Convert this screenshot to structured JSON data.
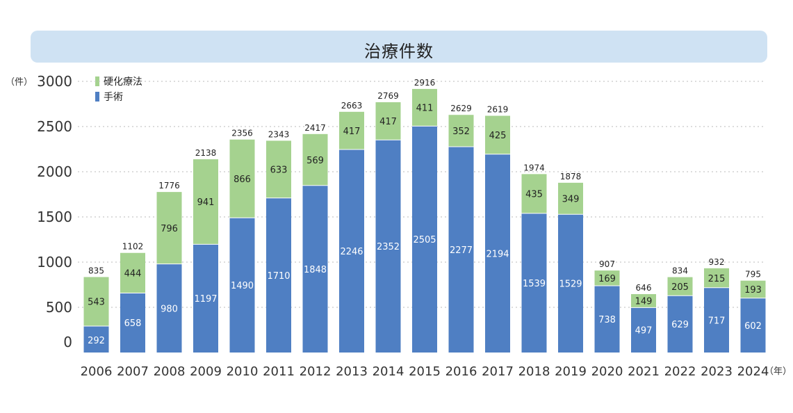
{
  "title": "治療件数",
  "y_unit": "（件）",
  "x_unit": "（年）",
  "colors": {
    "surgery": "#4f7fc3",
    "sclerotherapy": "#a5d28f",
    "banner": "#cfe2f3"
  },
  "chart_data": {
    "type": "bar",
    "stacked": true,
    "title": "治療件数",
    "categories": [
      "2006",
      "2007",
      "2008",
      "2009",
      "2010",
      "2011",
      "2012",
      "2013",
      "2014",
      "2015",
      "2016",
      "2017",
      "2018",
      "2019",
      "2020",
      "2021",
      "2022",
      "2023",
      "2024"
    ],
    "series": [
      {
        "name": "手術",
        "values": [
          292,
          658,
          980,
          1197,
          1490,
          1710,
          1848,
          2246,
          2352,
          2505,
          2277,
          2194,
          1539,
          1529,
          738,
          497,
          629,
          717,
          602
        ]
      },
      {
        "name": "硬化療法",
        "values": [
          543,
          444,
          796,
          941,
          866,
          633,
          569,
          417,
          417,
          411,
          352,
          425,
          435,
          349,
          169,
          149,
          205,
          215,
          193
        ]
      }
    ],
    "totals": [
      835,
      1102,
      1776,
      2138,
      2356,
      2343,
      2417,
      2663,
      2769,
      2916,
      2629,
      2619,
      1974,
      1878,
      907,
      646,
      834,
      932,
      795
    ],
    "ylim": [
      0,
      3000
    ],
    "yticks": [
      0,
      500,
      1000,
      1500,
      2000,
      2500,
      3000
    ],
    "grid": true,
    "legend_position": "top-left"
  }
}
